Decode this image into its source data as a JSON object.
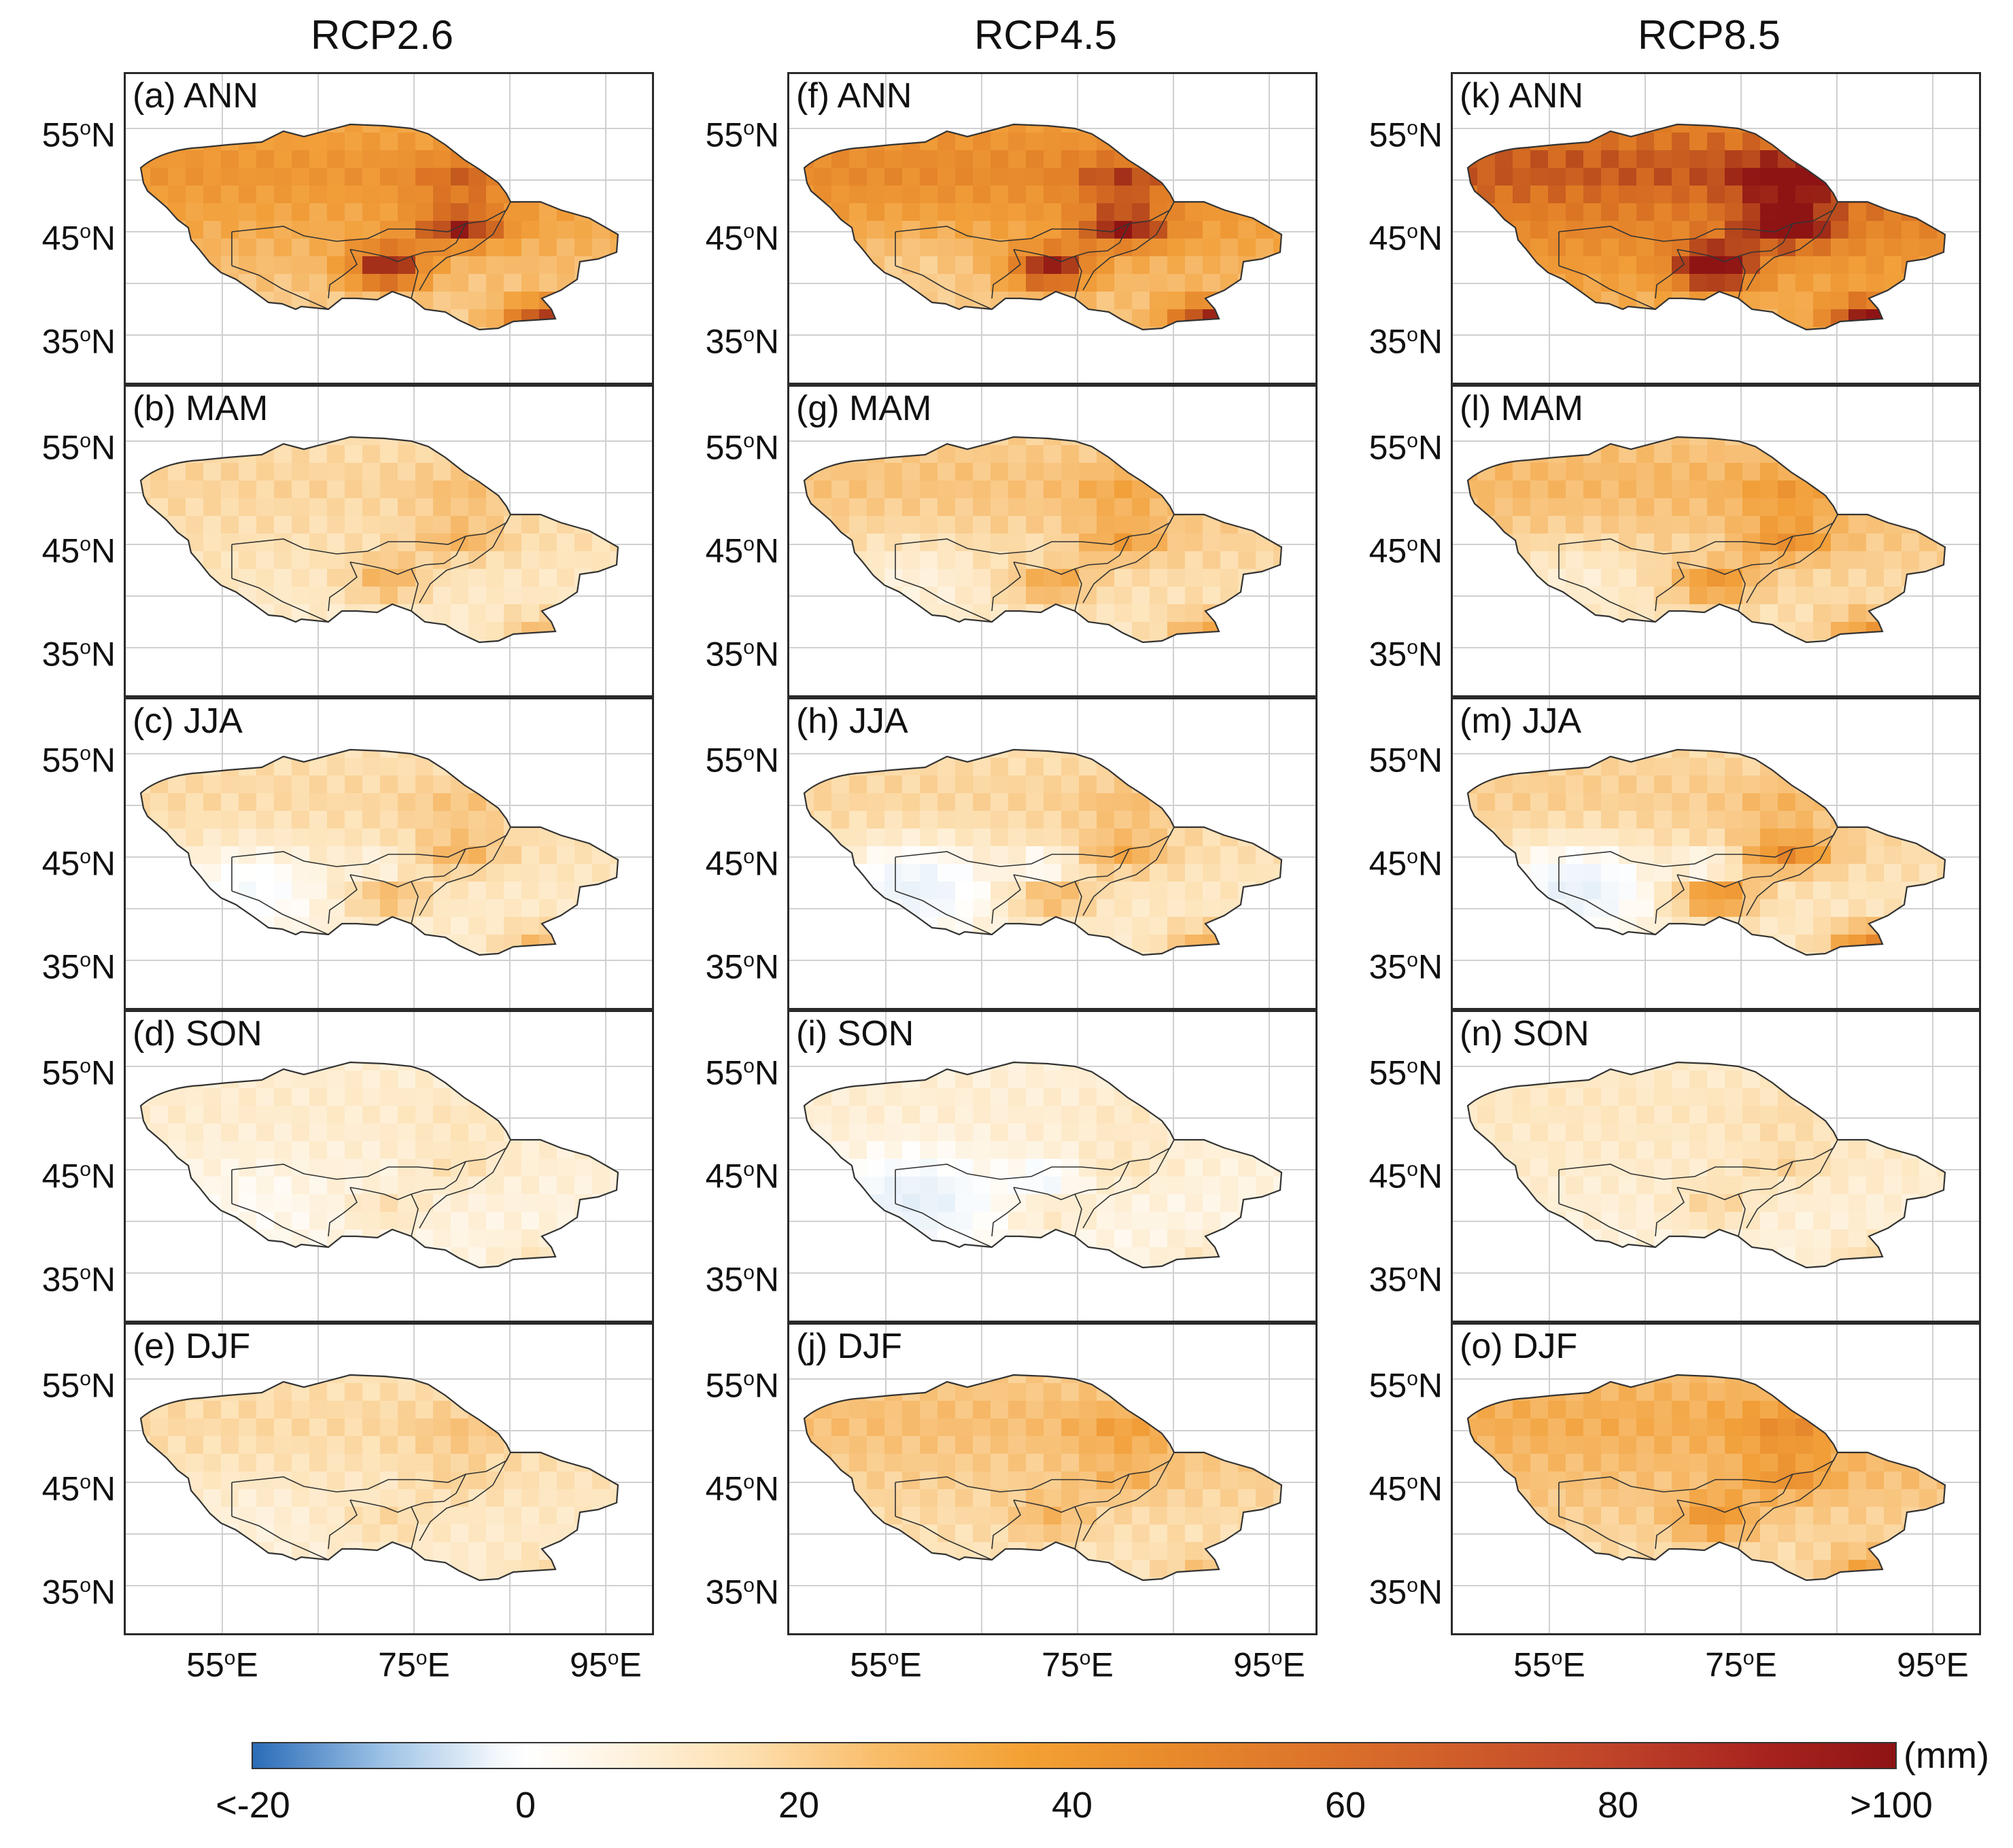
{
  "figure": {
    "columns": [
      "RCP2.6",
      "RCP4.5",
      "RCP8.5"
    ],
    "lat_labels": [
      "55",
      "45",
      "35"
    ],
    "lat_suffix": "N",
    "lon_labels": [
      "55",
      "75",
      "95"
    ],
    "lon_suffix": "E",
    "degree_mark": "o",
    "panels": [
      {
        "label": "(a) ANN",
        "column": 0,
        "row": 0,
        "intensity": 0.62,
        "hotspot": 1.0,
        "blue": 0.0
      },
      {
        "label": "(b) MAM",
        "column": 0,
        "row": 1,
        "intensity": 0.32,
        "hotspot": 0.45,
        "blue": 0.0
      },
      {
        "label": "(c) JJA",
        "column": 0,
        "row": 2,
        "intensity": 0.3,
        "hotspot": 0.5,
        "blue": 0.35
      },
      {
        "label": "(d) SON",
        "column": 0,
        "row": 3,
        "intensity": 0.18,
        "hotspot": 0.25,
        "blue": 0.1
      },
      {
        "label": "(e) DJF",
        "column": 0,
        "row": 4,
        "intensity": 0.3,
        "hotspot": 0.2,
        "blue": 0.1
      },
      {
        "label": "(f) ANN",
        "column": 1,
        "row": 0,
        "intensity": 0.68,
        "hotspot": 1.0,
        "blue": 0.15
      },
      {
        "label": "(g) MAM",
        "column": 1,
        "row": 1,
        "intensity": 0.4,
        "hotspot": 0.5,
        "blue": 0.2
      },
      {
        "label": "(h) JJA",
        "column": 1,
        "row": 2,
        "intensity": 0.32,
        "hotspot": 0.55,
        "blue": 0.55
      },
      {
        "label": "(i) SON",
        "column": 1,
        "row": 3,
        "intensity": 0.16,
        "hotspot": 0.25,
        "blue": 0.45
      },
      {
        "label": "(j) DJF",
        "column": 1,
        "row": 4,
        "intensity": 0.42,
        "hotspot": 0.3,
        "blue": 0.0
      },
      {
        "label": "(k) ANN",
        "column": 2,
        "row": 0,
        "intensity": 0.85,
        "hotspot": 1.0,
        "blue": 0.0
      },
      {
        "label": "(l) MAM",
        "column": 2,
        "row": 1,
        "intensity": 0.45,
        "hotspot": 0.6,
        "blue": 0.2
      },
      {
        "label": "(m) JJA",
        "column": 2,
        "row": 2,
        "intensity": 0.35,
        "hotspot": 0.85,
        "blue": 0.6
      },
      {
        "label": "(n) SON",
        "column": 2,
        "row": 3,
        "intensity": 0.22,
        "hotspot": 0.3,
        "blue": 0.0
      },
      {
        "label": "(o) DJF",
        "column": 2,
        "row": 4,
        "intensity": 0.5,
        "hotspot": 0.5,
        "blue": 0.0
      }
    ]
  },
  "colorbar": {
    "tick_labels": [
      "<-20",
      "0",
      "20",
      "40",
      "60",
      "80",
      ">100"
    ],
    "unit": "(mm)"
  },
  "colors": {
    "neutral": "#ffffff",
    "light_orange": "#fde3b8",
    "orange": "#f2a03a",
    "dark_orange": "#e07b25",
    "dark_red": "#8e1414",
    "light_blue": "#c6dcf0",
    "blue": "#5f95cc",
    "border": "#333333",
    "grid": "#d0d0d0"
  }
}
